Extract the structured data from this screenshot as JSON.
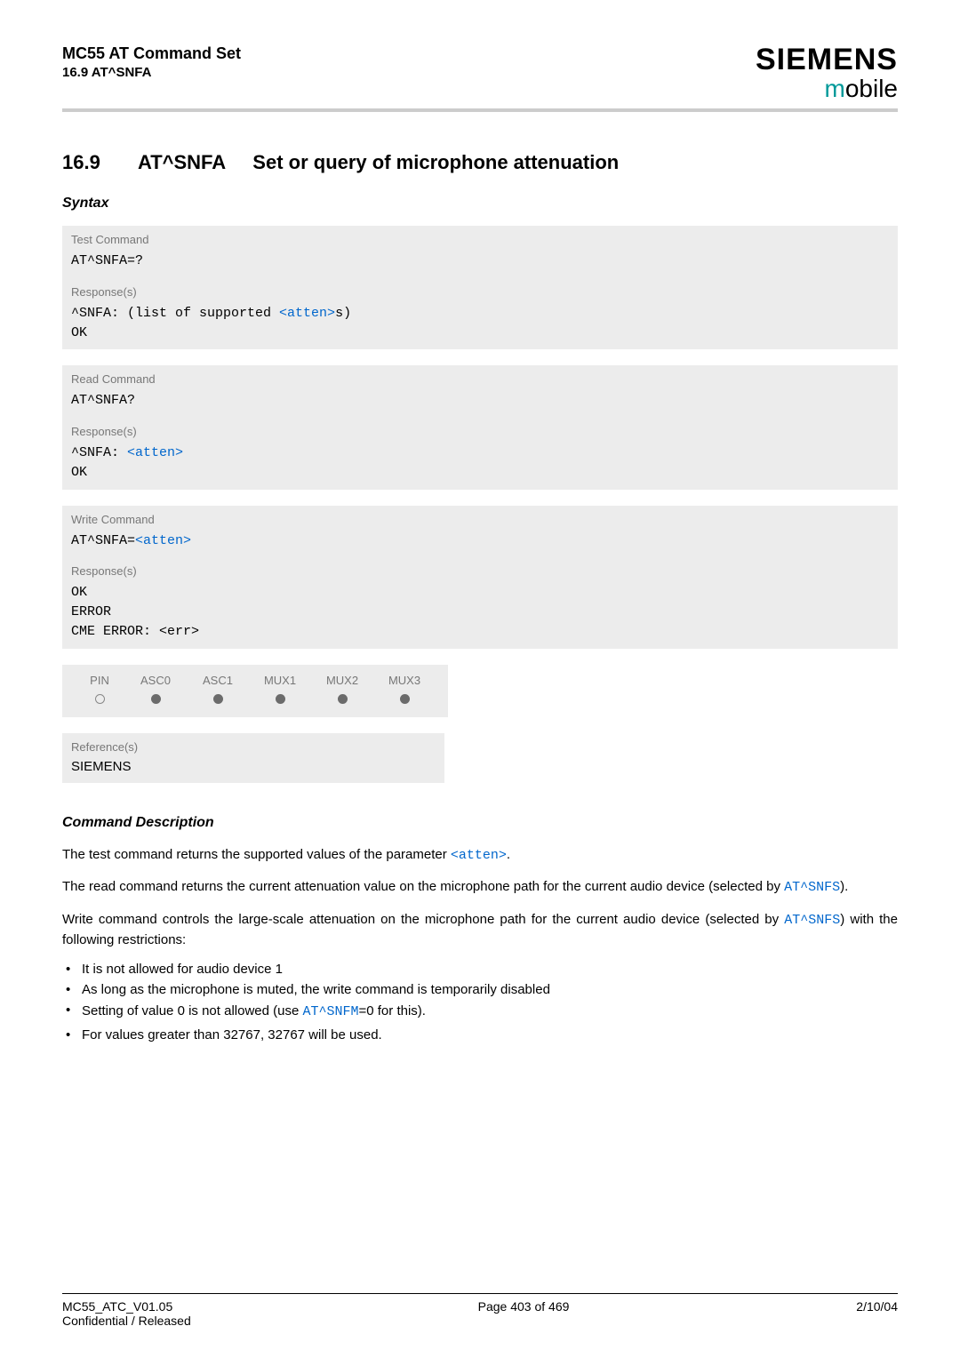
{
  "header": {
    "title_main": "MC55 AT Command Set",
    "title_sub": "16.9 AT^SNFA",
    "brand": "SIEMENS",
    "brand_sub_m": "m",
    "brand_sub_rest": "obile"
  },
  "section": {
    "number": "16.9",
    "cmd": "AT^SNFA",
    "title": "Set or query of microphone attenuation"
  },
  "syntax_label": "Syntax",
  "blocks": {
    "test": {
      "label": "Test Command",
      "cmd": "AT^SNFA=?",
      "resp_label": "Response(s)",
      "resp_prefix": "^SNFA: ",
      "resp_text_a": "(list of supported ",
      "resp_link": "<atten>",
      "resp_text_b": "s)",
      "ok": "OK"
    },
    "read": {
      "label": "Read Command",
      "cmd": "AT^SNFA?",
      "resp_label": "Response(s)",
      "resp_prefix": "^SNFA: ",
      "resp_link": "<atten>",
      "ok": "OK"
    },
    "write": {
      "label": "Write Command",
      "cmd_prefix": "AT^SNFA=",
      "cmd_link": "<atten>",
      "resp_label": "Response(s)",
      "ok": "OK",
      "error": "ERROR",
      "cme": "CME ERROR: <err>"
    }
  },
  "pin_table": {
    "headers": [
      "PIN",
      "ASC0",
      "ASC1",
      "MUX1",
      "MUX2",
      "MUX3"
    ],
    "values": [
      "open",
      "filled",
      "filled",
      "filled",
      "filled",
      "filled"
    ]
  },
  "reference": {
    "label": "Reference(s)",
    "value": "SIEMENS"
  },
  "cmd_desc": {
    "heading": "Command Description",
    "p1_a": "The test command returns the supported values of the parameter ",
    "p1_link": "<atten>",
    "p1_b": ".",
    "p2_a": "The read command returns the current attenuation value on the microphone path for the current audio device (selected by ",
    "p2_link": "AT^SNFS",
    "p2_b": ").",
    "p3_a": "Write command controls the large-scale attenuation on the microphone path for the current audio device (selected by ",
    "p3_link": "AT^SNFS",
    "p3_b": ") with the following restrictions:",
    "bullets": [
      "It is not allowed for audio device 1",
      "As long as the microphone is muted, the write command is temporarily disabled"
    ],
    "b3_a": "Setting of value 0 is not allowed (use ",
    "b3_link": "AT^SNFM",
    "b3_b": "=0 for this).",
    "b4": "For values greater than 32767, 32767 will be used."
  },
  "footer": {
    "left_top": "MC55_ATC_V01.05",
    "left_sub": "Confidential / Released",
    "center": "Page 403 of 469",
    "right": "2/10/04"
  }
}
